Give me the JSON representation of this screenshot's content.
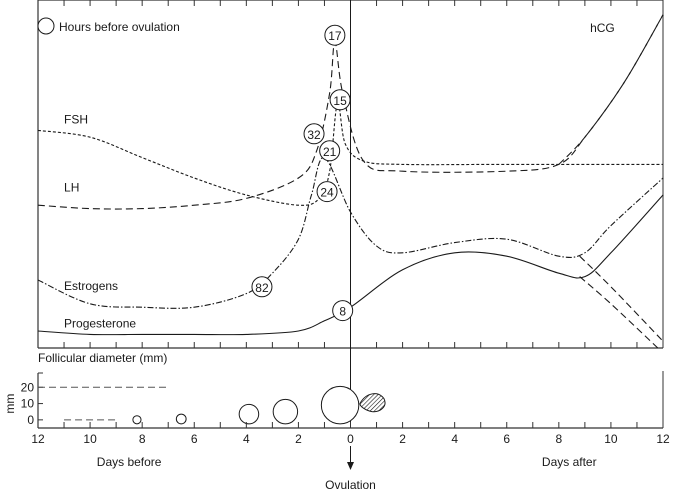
{
  "chart_data": {
    "type": "line",
    "title": "",
    "legend": {
      "symbol": "circle",
      "label": "Hours before ovulation",
      "placement": "top-left"
    },
    "xlim": [
      -12,
      12
    ],
    "x_ticks": [
      12,
      10,
      8,
      6,
      4,
      2,
      0,
      2,
      4,
      6,
      8,
      10,
      12
    ],
    "x_tick_values": [
      -12,
      -10,
      -8,
      -6,
      -4,
      -2,
      0,
      2,
      4,
      6,
      8,
      10,
      12
    ],
    "xlabel_before": "Days before",
    "xlabel_after": "Days after",
    "ovulation_label": "Ovulation",
    "series": [
      {
        "name": "FSH",
        "style": "short-dash",
        "points": [
          [
            -12,
            0.64
          ],
          [
            -10,
            0.62
          ],
          [
            -8,
            0.56
          ],
          [
            -6,
            0.5
          ],
          [
            -4,
            0.45
          ],
          [
            -2,
            0.42
          ],
          [
            -1.2,
            0.44
          ],
          [
            -0.8,
            0.52
          ],
          [
            -0.5,
            0.72
          ],
          [
            -0.2,
            0.6
          ],
          [
            0.5,
            0.55
          ],
          [
            2,
            0.54
          ],
          [
            6,
            0.54
          ],
          [
            12,
            0.54
          ]
        ]
      },
      {
        "name": "LH",
        "style": "long-dash",
        "points": [
          [
            -12,
            0.42
          ],
          [
            -10,
            0.41
          ],
          [
            -8,
            0.41
          ],
          [
            -6,
            0.42
          ],
          [
            -4,
            0.44
          ],
          [
            -2,
            0.5
          ],
          [
            -1.3,
            0.58
          ],
          [
            -0.8,
            0.75
          ],
          [
            -0.6,
            0.9
          ],
          [
            -0.3,
            0.75
          ],
          [
            0.5,
            0.55
          ],
          [
            2,
            0.52
          ],
          [
            6,
            0.52
          ],
          [
            8,
            0.54
          ],
          [
            9,
            0.62
          ],
          [
            10.5,
            0.78
          ],
          [
            12,
            0.98
          ]
        ]
      },
      {
        "name": "Estrogens",
        "style": "dash-dot",
        "points": [
          [
            -12,
            0.2
          ],
          [
            -10,
            0.13
          ],
          [
            -8,
            0.12
          ],
          [
            -6,
            0.12
          ],
          [
            -4,
            0.16
          ],
          [
            -3,
            0.22
          ],
          [
            -2,
            0.32
          ],
          [
            -1.5,
            0.45
          ],
          [
            -1.0,
            0.56
          ],
          [
            0,
            0.4
          ],
          [
            1,
            0.3
          ],
          [
            2,
            0.28
          ],
          [
            4,
            0.31
          ],
          [
            6,
            0.32
          ],
          [
            8,
            0.27
          ],
          [
            9,
            0.28
          ],
          [
            10,
            0.36
          ],
          [
            12,
            0.5
          ]
        ]
      },
      {
        "name": "Progesterone",
        "style": "solid",
        "points": [
          [
            -12,
            0.05
          ],
          [
            -10,
            0.04
          ],
          [
            -8,
            0.04
          ],
          [
            -6,
            0.04
          ],
          [
            -4,
            0.04
          ],
          [
            -2,
            0.05
          ],
          [
            -1,
            0.08
          ],
          [
            0,
            0.12
          ],
          [
            2,
            0.23
          ],
          [
            4,
            0.28
          ],
          [
            6,
            0.27
          ],
          [
            8,
            0.22
          ],
          [
            9,
            0.21
          ],
          [
            10,
            0.28
          ],
          [
            12,
            0.45
          ]
        ]
      },
      {
        "name": "Estrogens-decline",
        "style": "long-dash",
        "points": [
          [
            8.8,
            0.27
          ],
          [
            10,
            0.18
          ],
          [
            12,
            0.02
          ]
        ]
      },
      {
        "name": "Progesterone-decline",
        "style": "long-dash",
        "points": [
          [
            8.8,
            0.21
          ],
          [
            10,
            0.13
          ],
          [
            11.8,
            0.0
          ]
        ]
      },
      {
        "name": "hCG",
        "style": "long-dash",
        "points": [
          [
            8,
            0.54
          ],
          [
            9,
            0.62
          ],
          [
            10.5,
            0.78
          ],
          [
            12,
            0.98
          ]
        ]
      }
    ],
    "series_labels": [
      "FSH",
      "LH",
      "Estrogens",
      "Progesterone",
      "hCG"
    ],
    "hour_annotations": [
      {
        "hours": "17",
        "x": -0.6,
        "y": 0.92
      },
      {
        "hours": "15",
        "x": -0.4,
        "y": 0.73
      },
      {
        "hours": "32",
        "x": -1.4,
        "y": 0.63
      },
      {
        "hours": "21",
        "x": -0.8,
        "y": 0.58
      },
      {
        "hours": "24",
        "x": -0.9,
        "y": 0.46
      },
      {
        "hours": "82",
        "x": -3.4,
        "y": 0.18
      },
      {
        "hours": "8",
        "x": -0.3,
        "y": 0.11
      }
    ],
    "follicle": {
      "title": "Follicular diameter (mm)",
      "ylabel": "mm",
      "y_ticks": [
        20,
        10,
        0
      ],
      "ylim": [
        -5,
        30
      ],
      "follicles": [
        {
          "day": -8.2,
          "diameter_mm": 5
        },
        {
          "day": -6.5,
          "diameter_mm": 6
        },
        {
          "day": -3.9,
          "diameter_mm": 12
        },
        {
          "day": -2.5,
          "diameter_mm": 15
        },
        {
          "day": -0.4,
          "diameter_mm": 23
        }
      ],
      "corpus_luteum_day": 0.9,
      "reference_lines": [
        {
          "y_mm": 20,
          "from_day": -12,
          "to_day": -7
        },
        {
          "y_mm": 0,
          "from_day": -11,
          "to_day": -9
        }
      ]
    }
  }
}
